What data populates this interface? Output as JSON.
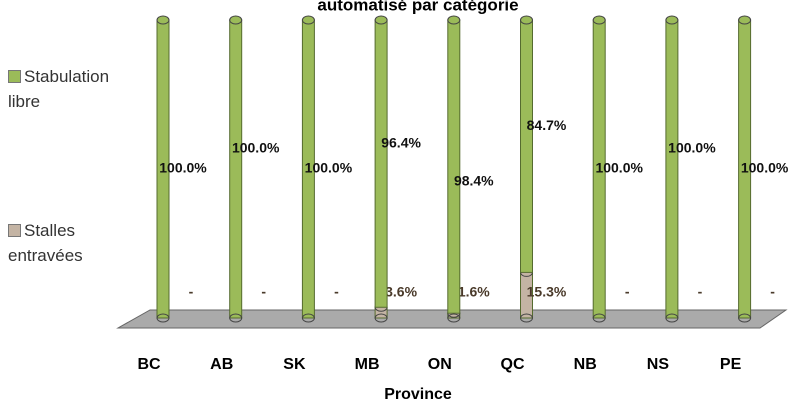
{
  "chart_data": {
    "type": "bar3d-stacked",
    "title": "automatisé par catégorie",
    "x_label": "Province",
    "categories": [
      "BC",
      "AB",
      "SK",
      "MB",
      "ON",
      "QC",
      "NB",
      "NS",
      "PE"
    ],
    "series": [
      {
        "name": "Stalles entravées",
        "color": "#c4b4a4",
        "values": [
          0,
          0,
          0,
          3.6,
          1.6,
          15.3,
          0,
          0,
          0
        ],
        "value_labels": [
          "-",
          "-",
          "-",
          "3.6%",
          "1.6%",
          "15.3%",
          "-",
          "-",
          "-"
        ]
      },
      {
        "name": "Stabulation libre",
        "color": "#9bbb59",
        "values": [
          100.0,
          100.0,
          100.0,
          96.4,
          98.4,
          84.7,
          100.0,
          100.0,
          100.0
        ],
        "value_labels": [
          "100.0%",
          "100.0%",
          "100.0%",
          "96.4%",
          "98.4%",
          "84.7%",
          "100.0%",
          "100.0%",
          "100.0%"
        ]
      }
    ]
  }
}
